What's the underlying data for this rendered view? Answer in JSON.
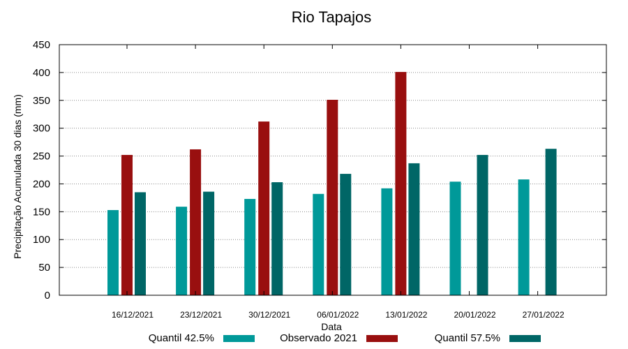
{
  "chart_data": {
    "type": "bar",
    "title": "Rio Tapajos",
    "xlabel": "Data",
    "ylabel": "Precipitação Acumulada 30 dias (mm)",
    "ylim": [
      0,
      450
    ],
    "yticks": [
      0,
      50,
      100,
      150,
      200,
      250,
      300,
      350,
      400,
      450
    ],
    "grid": true,
    "legend_position": "bottom",
    "categories": [
      "16/12/2021",
      "23/12/2021",
      "30/12/2021",
      "06/01/2022",
      "13/01/2022",
      "20/01/2022",
      "27/01/2022"
    ],
    "series": [
      {
        "name": "Quantil 42.5%",
        "color": "#009999",
        "values": [
          153,
          159,
          173,
          182,
          192,
          204,
          208
        ]
      },
      {
        "name": "Observado 2021",
        "color": "#990f0f",
        "values": [
          252,
          262,
          312,
          351,
          401,
          null,
          null
        ]
      },
      {
        "name": "Quantil 57.5%",
        "color": "#006666",
        "values": [
          185,
          186,
          203,
          218,
          237,
          252,
          263
        ]
      }
    ]
  }
}
